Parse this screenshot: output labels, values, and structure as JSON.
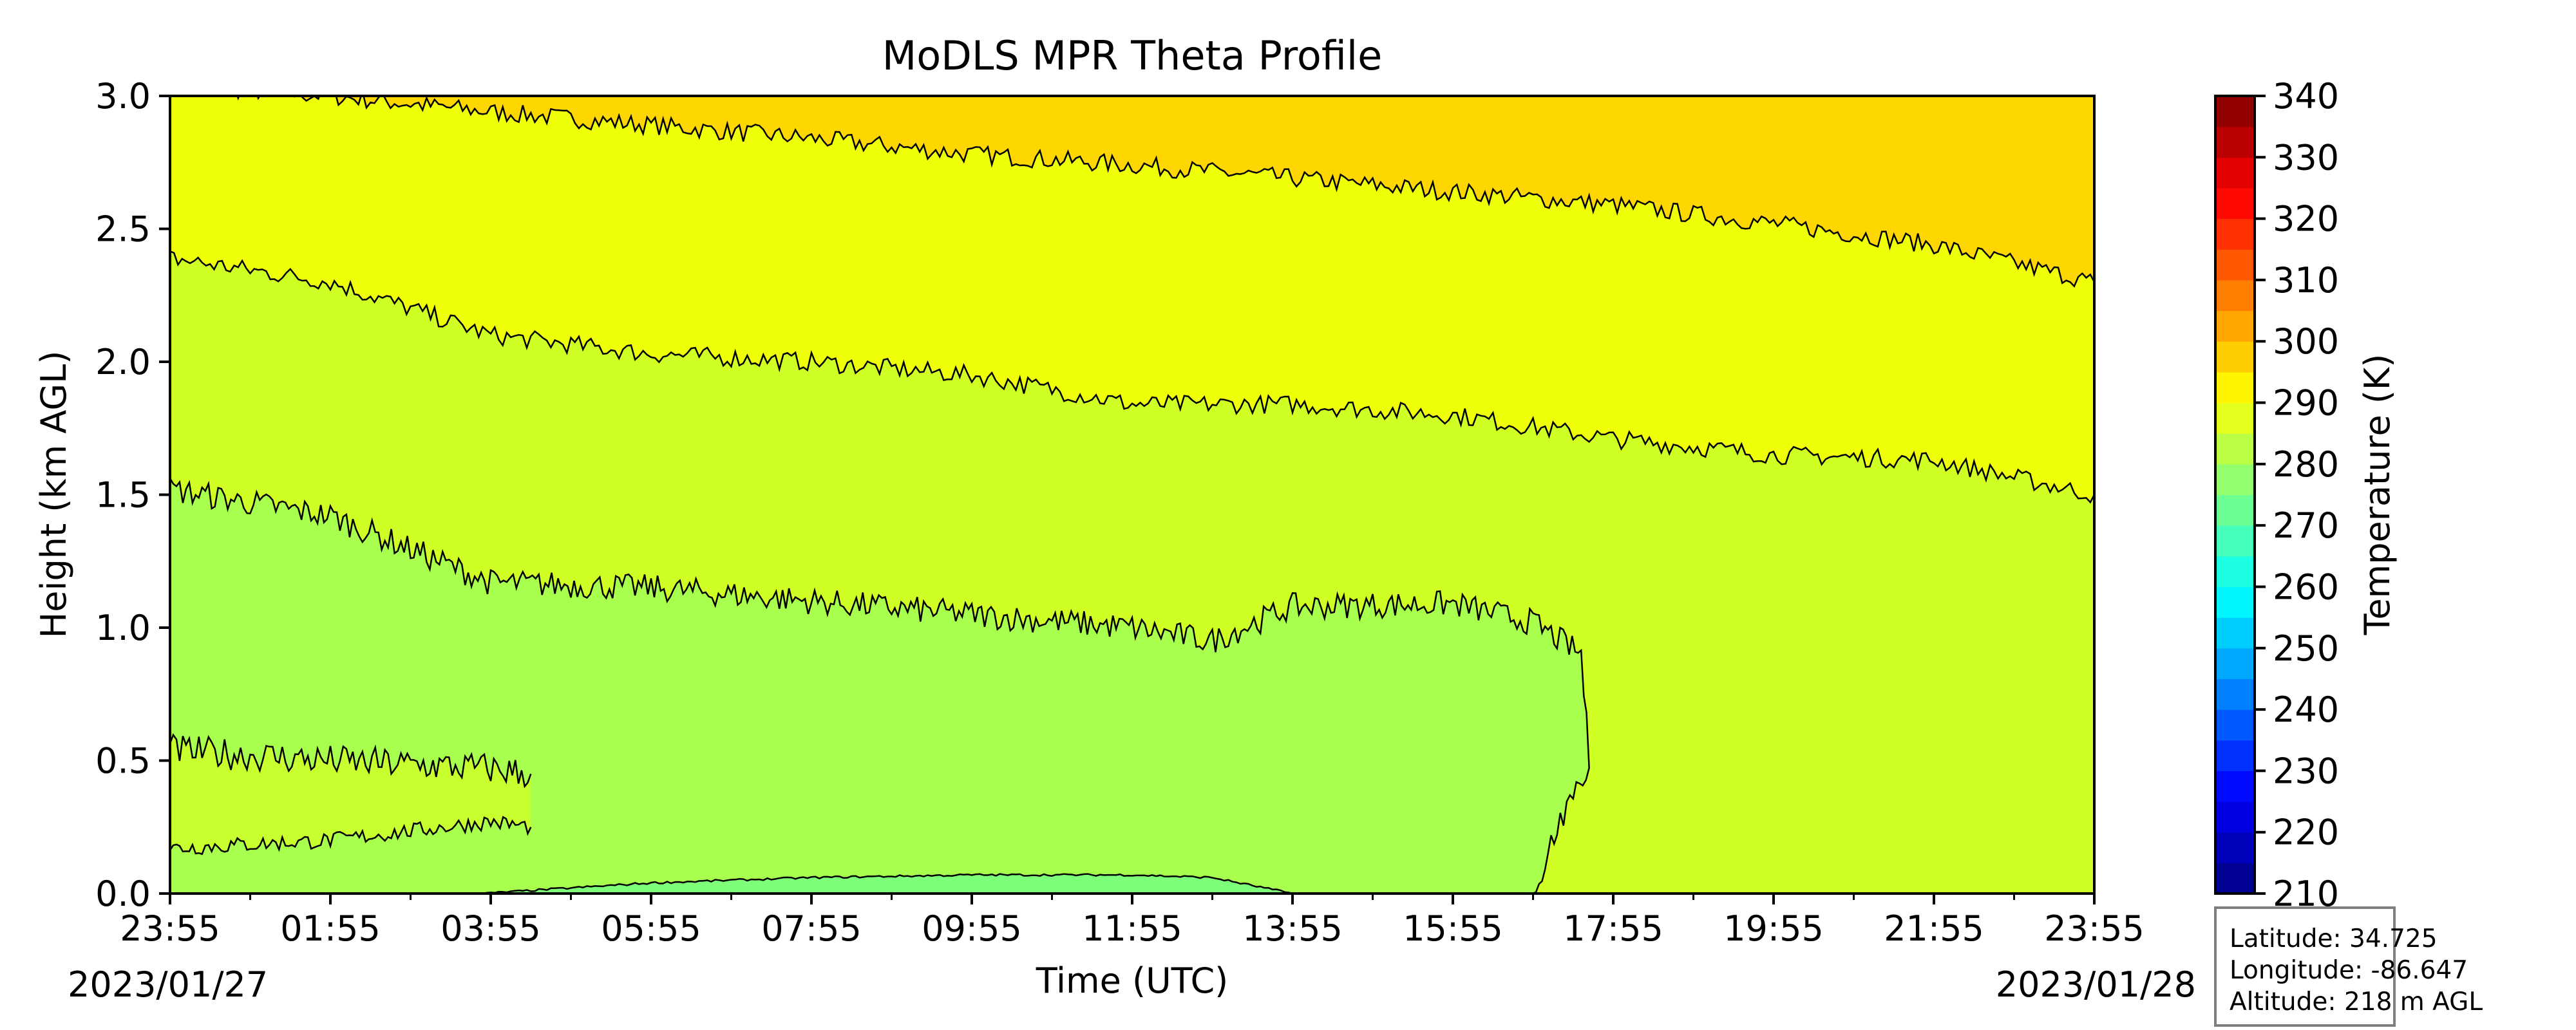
{
  "chart_data": {
    "type": "heatmap",
    "title": "MoDLS MPR Theta Profile",
    "xlabel": "Time (UTC)",
    "ylabel": "Height (km AGL)",
    "colorbar_label": "Temperature (K)",
    "x_tick_labels": [
      "23:55",
      "01:55",
      "03:55",
      "05:55",
      "07:55",
      "09:55",
      "11:55",
      "13:55",
      "15:55",
      "17:55",
      "19:55",
      "21:55",
      "23:55"
    ],
    "x_start_date_label": "2023/01/27",
    "x_end_date_label": "2023/01/28",
    "y_tick_labels": [
      "0.0",
      "0.5",
      "1.0",
      "1.5",
      "2.0",
      "2.5",
      "3.0"
    ],
    "ylim": [
      0.0,
      3.0
    ],
    "colorbar_ticks": [
      "210",
      "220",
      "230",
      "240",
      "250",
      "260",
      "270",
      "280",
      "290",
      "300",
      "310",
      "320",
      "330",
      "340"
    ],
    "colorbar_range": [
      210,
      340
    ],
    "colorbar_step": 5,
    "colormap": "jet",
    "contour_levels": [
      275,
      280,
      285,
      290,
      295
    ],
    "contour_color": "#000000",
    "contour_heights_km": {
      "level_295": [
        [
          0,
          3.04
        ],
        [
          2,
          3.0
        ],
        [
          4,
          2.94
        ],
        [
          6,
          2.89
        ],
        [
          8,
          2.84
        ],
        [
          10,
          2.78
        ],
        [
          12,
          2.74
        ],
        [
          14,
          2.69
        ],
        [
          16,
          2.64
        ],
        [
          18,
          2.59
        ],
        [
          20,
          2.52
        ],
        [
          22,
          2.44
        ],
        [
          24,
          2.3
        ]
      ],
      "level_290": [
        [
          0,
          2.39
        ],
        [
          2,
          2.3
        ],
        [
          4,
          2.1
        ],
        [
          6,
          2.03
        ],
        [
          8,
          2.0
        ],
        [
          10,
          1.95
        ],
        [
          12,
          1.84
        ],
        [
          14,
          1.84
        ],
        [
          16,
          1.8
        ],
        [
          18,
          1.71
        ],
        [
          20,
          1.65
        ],
        [
          22,
          1.63
        ],
        [
          24,
          1.5
        ]
      ],
      "level_285": [
        [
          0,
          1.52
        ],
        [
          2,
          1.42
        ],
        [
          4,
          1.17
        ],
        [
          6,
          1.15
        ],
        [
          8,
          1.1
        ],
        [
          10,
          1.05
        ],
        [
          12,
          1.0
        ],
        [
          13,
          0.95
        ],
        [
          14,
          1.08
        ],
        [
          16,
          1.09
        ],
        [
          17,
          1.02
        ],
        [
          17.6,
          0.9
        ],
        [
          17.7,
          0.5
        ],
        [
          17.3,
          0.25
        ],
        [
          17.0,
          0.0
        ]
      ],
      "level_280_bottom": [
        [
          0,
          0.17
        ],
        [
          2,
          0.2
        ],
        [
          4,
          0.27
        ],
        [
          4.5,
          0.25
        ]
      ],
      "level_280_top": [
        [
          0,
          0.54
        ],
        [
          2,
          0.5
        ],
        [
          4,
          0.47
        ],
        [
          4.5,
          0.45
        ]
      ],
      "level_275": [
        [
          3.9,
          0.0
        ],
        [
          6,
          0.04
        ],
        [
          8,
          0.06
        ],
        [
          10,
          0.07
        ],
        [
          12,
          0.07
        ],
        [
          13,
          0.06
        ],
        [
          14,
          0.0
        ]
      ]
    },
    "grid": false,
    "colorbar_position": "right"
  },
  "info_box": {
    "latitude": "Latitude: 34.725",
    "longitude": "Longitude: -86.647",
    "altitude": "Altitude: 218 m AGL"
  }
}
